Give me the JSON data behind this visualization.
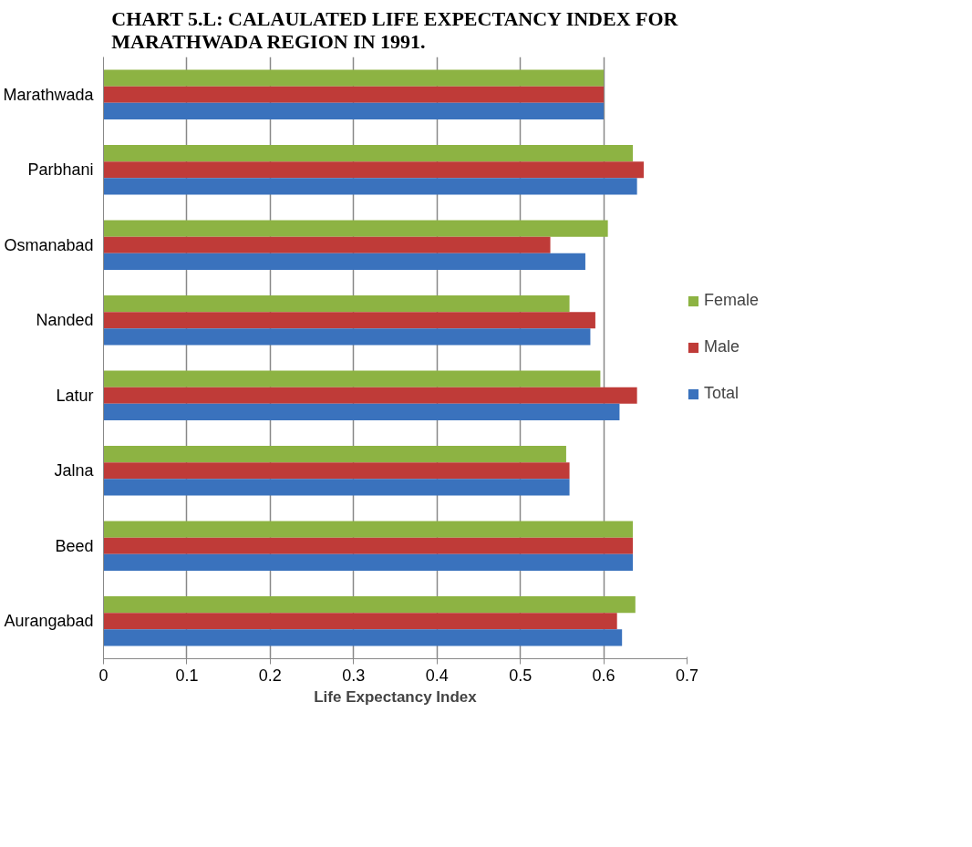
{
  "chart_data": {
    "type": "bar",
    "orientation": "horizontal",
    "title": "CHART 5.L: CALAULATED LIFE EXPECTANCY INDEX FOR\nMARATHWADA REGION IN 1991.",
    "xlabel": "Life Expectancy Index",
    "categories": [
      "Marathwada",
      "Parbhani",
      "Osmanabad",
      "Nanded",
      "Latur",
      "Jalna",
      "Beed",
      "Aurangabad"
    ],
    "series": [
      {
        "name": "Female",
        "color": "#8db343",
        "values": [
          0.6,
          0.635,
          0.605,
          0.559,
          0.596,
          0.555,
          0.635,
          0.638
        ]
      },
      {
        "name": "Male",
        "color": "#bf3b38",
        "values": [
          0.6,
          0.648,
          0.536,
          0.59,
          0.64,
          0.559,
          0.635,
          0.616
        ]
      },
      {
        "name": "Total",
        "color": "#3a72bd",
        "values": [
          0.6,
          0.64,
          0.578,
          0.584,
          0.619,
          0.559,
          0.635,
          0.622
        ]
      }
    ],
    "xlim": [
      0,
      0.7
    ],
    "xticks": [
      0,
      0.1,
      0.2,
      0.3,
      0.4,
      0.5,
      0.6,
      0.7
    ],
    "grid": "x",
    "legend": "right"
  }
}
